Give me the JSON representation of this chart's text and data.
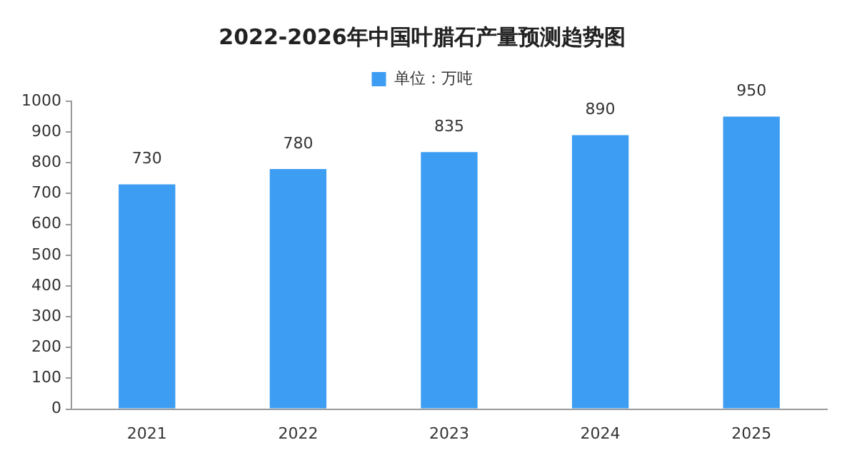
{
  "chart_data": {
    "type": "bar",
    "title": "2022-2026年中国叶腊石产量预测趋势图",
    "categories": [
      "2021",
      "2022",
      "2023",
      "2024",
      "2025"
    ],
    "series": [
      {
        "name": "单位：万吨",
        "color": "#3d9df2",
        "values": [
          730,
          780,
          835,
          890,
          950
        ]
      }
    ],
    "ylim": [
      0,
      1000
    ],
    "yticks": [
      0,
      100,
      200,
      300,
      400,
      500,
      600,
      700,
      800,
      900,
      1000
    ],
    "grid": false,
    "legend": "top",
    "data_labels": true
  }
}
